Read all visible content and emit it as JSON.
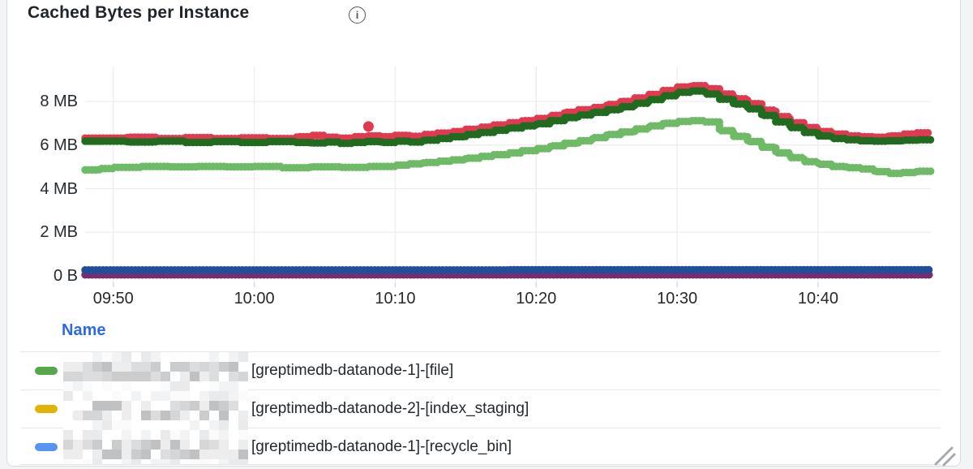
{
  "panel": {
    "title": "Cached Bytes per Instance",
    "info_icon_glyph": "i"
  },
  "chart_data": {
    "type": "line",
    "style": "dotted-step",
    "title": "Cached Bytes per Instance",
    "unit": "bytes",
    "grid": true,
    "x_axis": {
      "tick_labels": [
        "09:50",
        "10:00",
        "10:10",
        "10:20",
        "10:30",
        "10:40"
      ],
      "tick_minutes": [
        2,
        12,
        22,
        32,
        42,
        52
      ],
      "range_minutes": [
        0,
        60
      ]
    },
    "y_axis": {
      "tick_labels": [
        "8 MB",
        "6 MB",
        "4 MB",
        "2 MB",
        "0 B"
      ],
      "tick_values_mb": [
        8,
        6,
        4,
        2,
        0
      ],
      "range_mb": [
        0,
        9.8
      ]
    },
    "series": [
      {
        "name": "red",
        "color": "#e13a50",
        "points": [
          [
            0,
            6.32
          ],
          [
            3,
            6.36
          ],
          [
            5,
            6.3
          ],
          [
            7,
            6.34
          ],
          [
            9,
            6.3
          ],
          [
            11,
            6.33
          ],
          [
            13,
            6.3
          ],
          [
            15,
            6.38
          ],
          [
            16,
            6.44
          ],
          [
            17,
            6.36
          ],
          [
            18,
            6.32
          ],
          [
            19,
            6.38
          ],
          [
            20,
            6.42
          ],
          [
            21,
            6.38
          ],
          [
            22,
            6.44
          ],
          [
            23,
            6.4
          ],
          [
            24,
            6.48
          ],
          [
            25,
            6.55
          ],
          [
            26,
            6.62
          ],
          [
            27,
            6.72
          ],
          [
            28,
            6.82
          ],
          [
            29,
            6.92
          ],
          [
            30,
            7.02
          ],
          [
            31,
            7.12
          ],
          [
            32,
            7.22
          ],
          [
            33,
            7.36
          ],
          [
            34,
            7.5
          ],
          [
            35,
            7.62
          ],
          [
            36,
            7.72
          ],
          [
            37,
            7.86
          ],
          [
            38,
            8.0
          ],
          [
            39,
            8.16
          ],
          [
            40,
            8.32
          ],
          [
            41,
            8.5
          ],
          [
            42,
            8.66
          ],
          [
            43,
            8.72
          ],
          [
            44,
            8.58
          ],
          [
            45,
            8.34
          ],
          [
            46,
            8.12
          ],
          [
            47,
            7.9
          ],
          [
            48,
            7.6
          ],
          [
            49,
            7.3
          ],
          [
            50,
            7.02
          ],
          [
            51,
            6.8
          ],
          [
            52,
            6.62
          ],
          [
            53,
            6.5
          ],
          [
            54,
            6.42
          ],
          [
            55,
            6.38
          ],
          [
            56,
            6.36
          ],
          [
            57,
            6.42
          ],
          [
            58,
            6.5
          ],
          [
            59,
            6.56
          ],
          [
            60,
            6.58
          ]
        ]
      },
      {
        "name": "dark-green",
        "color": "#206b1f",
        "points": [
          [
            0,
            6.18
          ],
          [
            3,
            6.14
          ],
          [
            5,
            6.18
          ],
          [
            7,
            6.12
          ],
          [
            9,
            6.16
          ],
          [
            11,
            6.12
          ],
          [
            13,
            6.16
          ],
          [
            15,
            6.12
          ],
          [
            16,
            6.1
          ],
          [
            17,
            6.14
          ],
          [
            18,
            6.08
          ],
          [
            19,
            6.12
          ],
          [
            20,
            6.16
          ],
          [
            21,
            6.12
          ],
          [
            22,
            6.18
          ],
          [
            23,
            6.14
          ],
          [
            24,
            6.22
          ],
          [
            25,
            6.3
          ],
          [
            26,
            6.38
          ],
          [
            27,
            6.48
          ],
          [
            28,
            6.58
          ],
          [
            29,
            6.68
          ],
          [
            30,
            6.78
          ],
          [
            31,
            6.88
          ],
          [
            32,
            6.98
          ],
          [
            33,
            7.12
          ],
          [
            34,
            7.26
          ],
          [
            35,
            7.38
          ],
          [
            36,
            7.5
          ],
          [
            37,
            7.62
          ],
          [
            38,
            7.76
          ],
          [
            39,
            7.92
          ],
          [
            40,
            8.08
          ],
          [
            41,
            8.26
          ],
          [
            42,
            8.42
          ],
          [
            43,
            8.48
          ],
          [
            44,
            8.34
          ],
          [
            45,
            8.1
          ],
          [
            46,
            7.88
          ],
          [
            47,
            7.66
          ],
          [
            48,
            7.36
          ],
          [
            49,
            7.06
          ],
          [
            50,
            6.8
          ],
          [
            51,
            6.58
          ],
          [
            52,
            6.42
          ],
          [
            53,
            6.3
          ],
          [
            54,
            6.24
          ],
          [
            55,
            6.2
          ],
          [
            56,
            6.18
          ],
          [
            57,
            6.2
          ],
          [
            58,
            6.22
          ],
          [
            59,
            6.24
          ],
          [
            60,
            6.24
          ]
        ]
      },
      {
        "name": "light-green",
        "color": "#6fba66",
        "points": [
          [
            0,
            4.86
          ],
          [
            1,
            4.92
          ],
          [
            2,
            4.98
          ],
          [
            4,
            5.02
          ],
          [
            6,
            5.0
          ],
          [
            8,
            5.02
          ],
          [
            10,
            5.0
          ],
          [
            12,
            5.02
          ],
          [
            14,
            4.96
          ],
          [
            16,
            5.0
          ],
          [
            18,
            4.98
          ],
          [
            20,
            5.02
          ],
          [
            22,
            5.08
          ],
          [
            23,
            5.14
          ],
          [
            24,
            5.2
          ],
          [
            25,
            5.26
          ],
          [
            26,
            5.32
          ],
          [
            27,
            5.4
          ],
          [
            28,
            5.48
          ],
          [
            29,
            5.56
          ],
          [
            30,
            5.64
          ],
          [
            31,
            5.74
          ],
          [
            32,
            5.84
          ],
          [
            33,
            5.96
          ],
          [
            34,
            6.08
          ],
          [
            35,
            6.2
          ],
          [
            36,
            6.34
          ],
          [
            37,
            6.48
          ],
          [
            38,
            6.6
          ],
          [
            39,
            6.74
          ],
          [
            40,
            6.88
          ],
          [
            41,
            7.0
          ],
          [
            42,
            7.08
          ],
          [
            43,
            7.12
          ],
          [
            44,
            7.06
          ],
          [
            45,
            6.66
          ],
          [
            46,
            6.4
          ],
          [
            47,
            6.16
          ],
          [
            48,
            5.9
          ],
          [
            49,
            5.64
          ],
          [
            50,
            5.42
          ],
          [
            51,
            5.24
          ],
          [
            52,
            5.12
          ],
          [
            53,
            5.02
          ],
          [
            54,
            4.96
          ],
          [
            55,
            4.9
          ],
          [
            56,
            4.78
          ],
          [
            57,
            4.7
          ],
          [
            58,
            4.74
          ],
          [
            59,
            4.8
          ],
          [
            60,
            4.8
          ]
        ]
      },
      {
        "name": "dark-blue",
        "color": "#1f4f96",
        "points": [
          [
            0,
            0.27
          ],
          [
            30,
            0.28
          ],
          [
            60,
            0.27
          ]
        ]
      },
      {
        "name": "purple",
        "color": "#792d70",
        "points": [
          [
            0,
            0.05
          ],
          [
            60,
            0.05
          ]
        ]
      }
    ],
    "outliers": [
      {
        "series": "red",
        "minute": 20.1,
        "value_mb": 6.85
      }
    ]
  },
  "legend": {
    "header": "Name",
    "header_color": "#2d69e0",
    "rows": [
      {
        "marker_color": "#56a64b",
        "label": "[greptimedb-datanode-1]-[file]"
      },
      {
        "marker_color": "#e0b400",
        "label": "[greptimedb-datanode-2]-[index_staging]"
      },
      {
        "marker_color": "#5794f2",
        "label": "[greptimedb-datanode-1]-[recycle_bin]"
      }
    ]
  },
  "colors": {
    "grid": "#ecedee",
    "axis_text": "#24292e",
    "divider": "#e7e8ea",
    "panel_border": "#d9dcdf",
    "resize_handle": "#a6aaae"
  }
}
